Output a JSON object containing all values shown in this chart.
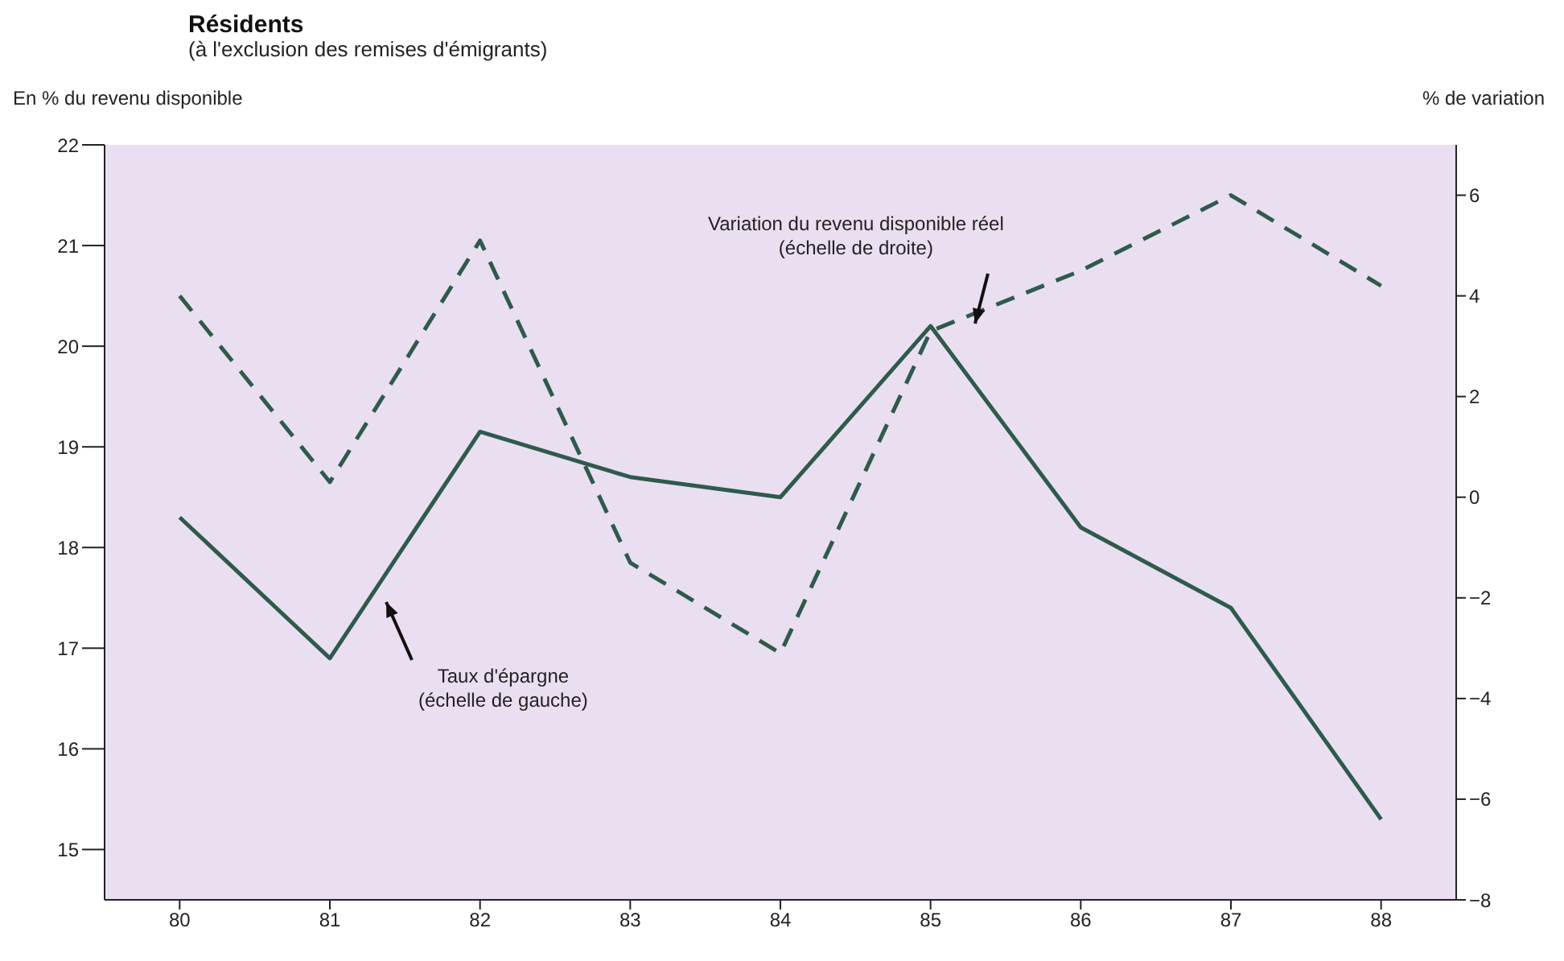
{
  "chart_data": {
    "type": "line",
    "title": "Résidents",
    "subtitle": "(à l'exclusion des remises d'émigrants)",
    "ylabel": "En % du revenu disponible",
    "y2label": "% de variation",
    "categories": [
      "80",
      "81",
      "82",
      "83",
      "84",
      "85",
      "86",
      "87",
      "88"
    ],
    "series": [
      {
        "color": "#2f5a4c",
        "line_style": "solid",
        "values": [
          18.3,
          16.9,
          19.15,
          18.7,
          18.5,
          20.2,
          18.2,
          17.4,
          15.3
        ]
      },
      {
        "color": "#2f5a4c",
        "line_style": "dashed",
        "axis": "y2",
        "values": [
          4.0,
          0.3,
          5.1,
          -1.3,
          -3.1,
          3.3,
          4.5,
          6.0,
          4.2
        ]
      }
    ],
    "ylim": [
      14.5,
      22
    ],
    "yticks": [
      15,
      16,
      17,
      18,
      19,
      20,
      21,
      22
    ],
    "y2lim": [
      -8,
      7
    ],
    "y2ticks": [
      {
        "value": -8,
        "label": "−8"
      },
      {
        "value": -6,
        "label": "−6"
      },
      {
        "value": -4,
        "label": "−4"
      },
      {
        "value": -2,
        "label": "−2"
      },
      0,
      2,
      4,
      6
    ],
    "annotations": [
      "Variation du revenu disponible réel\n(échelle de droite)",
      "Taux d'épargne\n(échelle de gauche)"
    ],
    "grid": false,
    "marker": "none"
  }
}
